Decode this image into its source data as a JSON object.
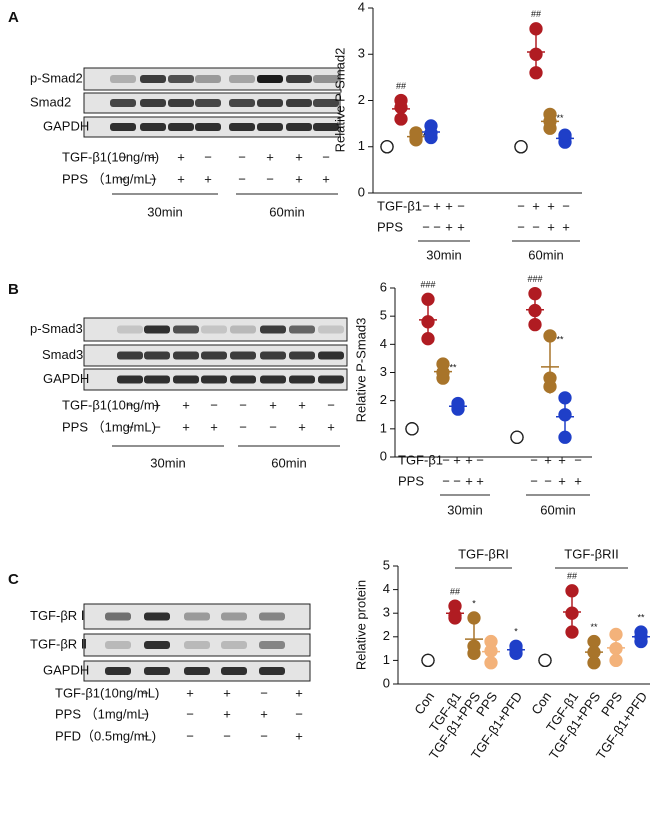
{
  "panel_labels": [
    "A",
    "B",
    "C"
  ],
  "blots": [
    {
      "rows": [
        "p-Smad2",
        "Smad2",
        "GAPDH"
      ],
      "conditions": [
        {
          "label": "TGF-β1(10ng/m)",
          "signs": [
            "−",
            "+",
            "+",
            "−",
            "−",
            "+",
            "+",
            "−"
          ]
        },
        {
          "label": "PPS （1mg/mL)",
          "signs": [
            "−",
            "−",
            "+",
            "+",
            "−",
            "−",
            "+",
            "+"
          ]
        }
      ],
      "groups": [
        "30min",
        "60min"
      ]
    },
    {
      "rows": [
        "p-Smad3",
        "Smad3",
        "GAPDH"
      ],
      "conditions": [
        {
          "label": "TGF-β1(10ng/m)",
          "signs": [
            "−",
            "+",
            "+",
            "−",
            "−",
            "+",
            "+",
            "−"
          ]
        },
        {
          "label": "PPS （1mg/mL)",
          "signs": [
            "−",
            "−",
            "+",
            "+",
            "−",
            "−",
            "+",
            "+"
          ]
        }
      ],
      "groups": [
        "30min",
        "60min"
      ]
    },
    {
      "rows": [
        "TGF-βR Ⅰ",
        "TGF-βR Ⅱ",
        "GAPDH"
      ],
      "conditions": [
        {
          "label": "TGF-β1(10ng/mL)",
          "signs": [
            "−",
            "+",
            "+",
            "−",
            "+"
          ]
        },
        {
          "label": "PPS （1mg/mL)",
          "signs": [
            "−",
            "−",
            "+",
            "+",
            "−"
          ]
        },
        {
          "label": "PFD（0.5mg/mL)",
          "signs": [
            "−",
            "−",
            "−",
            "−",
            "+"
          ]
        }
      ]
    }
  ],
  "chart_data": [
    {
      "type": "dot",
      "ylabel": "Relative P-Smad2",
      "ylim": [
        0,
        4
      ],
      "yticks": [
        0,
        1,
        2,
        3,
        4
      ],
      "conditions": [
        {
          "label": "TGF-β1",
          "signs": [
            "−",
            "+",
            "+",
            "−",
            "−",
            "+",
            "+",
            "−"
          ]
        },
        {
          "label": "PPS",
          "signs": [
            "−",
            "−",
            "+",
            "+",
            "−",
            "−",
            "+",
            "+"
          ]
        }
      ],
      "groups": [
        "30min",
        "60min"
      ],
      "points": [
        {
          "color": "#ffffff",
          "values": [
            1,
            1,
            1
          ]
        },
        {
          "color": "#b01c22",
          "values": [
            1.6,
            1.85,
            2.0
          ],
          "mean": 1.82,
          "sd": 0.2,
          "mark": "##"
        },
        {
          "color": "#a8742a",
          "values": [
            1.15,
            1.2,
            1.3
          ],
          "mean": 1.22,
          "sd": 0.08,
          "mark": "**"
        },
        {
          "color": "#1f3fc8",
          "values": [
            1.2,
            1.3,
            1.45
          ],
          "mean": 1.32,
          "sd": 0.12
        },
        {
          "color": "#ffffff",
          "values": [
            1,
            1,
            1
          ]
        },
        {
          "color": "#b01c22",
          "values": [
            2.6,
            3.0,
            3.55
          ],
          "mean": 3.05,
          "sd": 0.48,
          "mark": "##"
        },
        {
          "color": "#a8742a",
          "values": [
            1.4,
            1.55,
            1.7
          ],
          "mean": 1.55,
          "sd": 0.15,
          "mark": "**"
        },
        {
          "color": "#1f3fc8",
          "values": [
            1.1,
            1.2,
            1.25
          ],
          "mean": 1.18,
          "sd": 0.08
        }
      ]
    },
    {
      "type": "dot",
      "ylabel": "Relative P-Smad3",
      "ylim": [
        0,
        6
      ],
      "yticks": [
        0,
        1,
        2,
        3,
        4,
        5,
        6
      ],
      "conditions": [
        {
          "label": "TGF-β1",
          "signs": [
            "−",
            "+",
            "+",
            "−",
            "−",
            "+",
            "+",
            "−"
          ]
        },
        {
          "label": "PPS",
          "signs": [
            "−",
            "−",
            "+",
            "+",
            "−",
            "−",
            "+",
            "+"
          ]
        }
      ],
      "groups": [
        "30min",
        "60min"
      ],
      "points": [
        {
          "color": "#ffffff",
          "values": [
            1,
            1,
            1
          ]
        },
        {
          "color": "#b01c22",
          "values": [
            4.2,
            4.8,
            5.6
          ],
          "mean": 4.87,
          "sd": 0.7,
          "mark": "###"
        },
        {
          "color": "#a8742a",
          "values": [
            2.8,
            3.0,
            3.3
          ],
          "mean": 3.03,
          "sd": 0.25,
          "mark": "**"
        },
        {
          "color": "#1f3fc8",
          "values": [
            1.7,
            1.8,
            1.9
          ],
          "mean": 1.8,
          "sd": 0.1
        },
        {
          "color": "#ffffff",
          "values": [
            0.7,
            0.7,
            0.7
          ]
        },
        {
          "color": "#b01c22",
          "values": [
            4.7,
            5.2,
            5.8
          ],
          "mean": 5.23,
          "sd": 0.55,
          "mark": "###"
        },
        {
          "color": "#a8742a",
          "values": [
            2.5,
            2.8,
            4.3
          ],
          "mean": 3.2,
          "sd": 0.95,
          "mark": "**"
        },
        {
          "color": "#1f3fc8",
          "values": [
            0.7,
            1.5,
            2.1
          ],
          "mean": 1.43,
          "sd": 0.7
        }
      ]
    },
    {
      "type": "dot",
      "ylabel": "Relative protein",
      "ylim": [
        0,
        5
      ],
      "yticks": [
        0,
        1,
        2,
        3,
        4,
        5
      ],
      "groups": [
        "TGF-βRI",
        "TGF-βRII"
      ],
      "categories": [
        "Con",
        "TGF-β1",
        "TGF-β1+PPS",
        "PPS",
        "TGF-β1+PFD",
        "Con",
        "TGF-β1",
        "TGF-β1+PPS",
        "PPS",
        "TGF-β1+PFD"
      ],
      "points": [
        {
          "color": "#ffffff",
          "values": [
            1,
            1,
            1
          ]
        },
        {
          "color": "#b01c22",
          "values": [
            2.8,
            2.9,
            3.3
          ],
          "mean": 3.0,
          "sd": 0.26,
          "mark": "##"
        },
        {
          "color": "#a8742a",
          "values": [
            1.3,
            1.6,
            2.8
          ],
          "mean": 1.9,
          "sd": 0.8,
          "mark": "*"
        },
        {
          "color": "#f3b27a",
          "values": [
            0.9,
            1.4,
            1.8
          ],
          "mean": 1.37,
          "sd": 0.45
        },
        {
          "color": "#1f3fc8",
          "values": [
            1.3,
            1.45,
            1.6
          ],
          "mean": 1.45,
          "sd": 0.15,
          "mark": "*"
        },
        {
          "color": "#ffffff",
          "values": [
            1,
            1,
            1
          ]
        },
        {
          "color": "#b01c22",
          "values": [
            2.2,
            3.0,
            3.95
          ],
          "mean": 3.05,
          "sd": 0.88,
          "mark": "##"
        },
        {
          "color": "#a8742a",
          "values": [
            0.9,
            1.35,
            1.8
          ],
          "mean": 1.35,
          "sd": 0.45,
          "mark": "**"
        },
        {
          "color": "#f3b27a",
          "values": [
            1.0,
            1.5,
            2.1
          ],
          "mean": 1.53,
          "sd": 0.55
        },
        {
          "color": "#1f3fc8",
          "values": [
            1.8,
            2.0,
            2.2
          ],
          "mean": 2.0,
          "sd": 0.2,
          "mark": "**"
        }
      ]
    }
  ]
}
